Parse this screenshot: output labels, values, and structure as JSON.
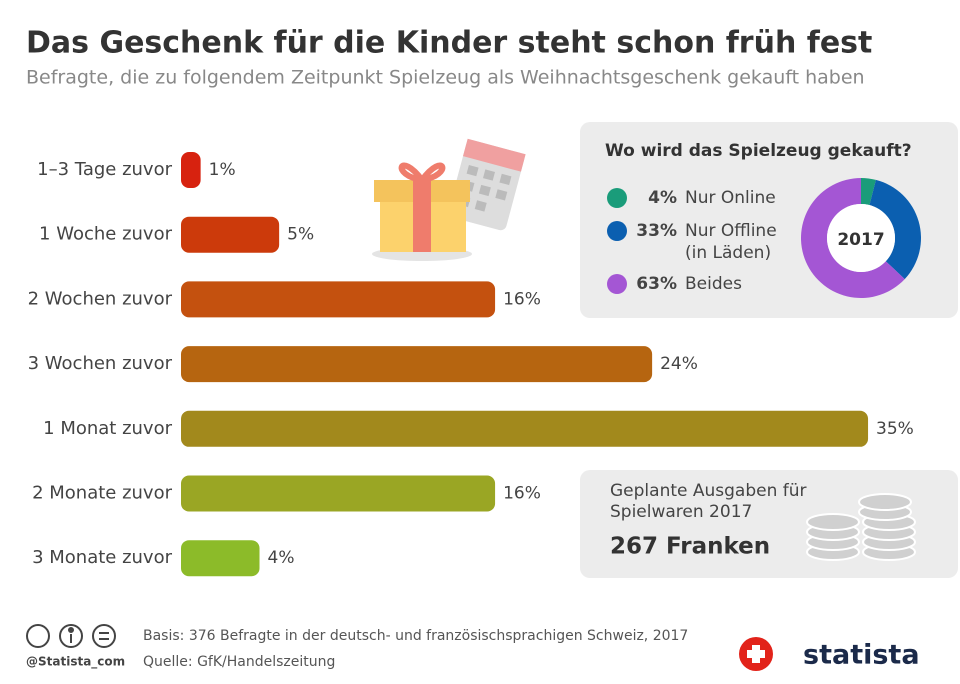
{
  "chart_data": [
    {
      "type": "bar",
      "orientation": "horizontal",
      "title": "Das Geschenk für die Kinder steht schon früh fest",
      "subtitle": "Befragte, die zu folgendem Zeitpunkt Spielzeug als Weihnachtsgeschenk gekauft haben",
      "categories": [
        "1–3 Tage zuvor",
        "1 Woche zuvor",
        "2 Wochen zuvor",
        "3 Wochen zuvor",
        "1 Monat zuvor",
        "2 Monate zuvor",
        "3 Monate zuvor"
      ],
      "values": [
        1,
        5,
        16,
        24,
        35,
        16,
        4
      ],
      "value_labels": [
        "1%",
        "5%",
        "16%",
        "24%",
        "35%",
        "16%",
        "4%"
      ],
      "colors": [
        "#d7220f",
        "#cc3a0b",
        "#c4510f",
        "#b66510",
        "#a2891c",
        "#9aa624",
        "#8cbb29"
      ]
    },
    {
      "type": "pie",
      "donut": true,
      "title": "Wo wird das Spielzeug gekauft?",
      "center_label": "2017",
      "categories": [
        "Nur Online",
        "Nur Offline (in Läden)",
        "Beides"
      ],
      "values": [
        4,
        33,
        63
      ],
      "value_labels": [
        "4%",
        "33%",
        "63%"
      ],
      "colors": [
        "#1a9c7a",
        "#0b5fb0",
        "#a456d4"
      ]
    }
  ],
  "info_box": {
    "label": "Geplante Ausgaben für Spielwaren 2017",
    "amount": "267 Franken"
  },
  "footer": {
    "basis": "Basis: 376 Befragte in der deutsch- und französischsprachigen Schweiz, 2017",
    "source": "Quelle: GfK/Handelszeitung",
    "handle": "@Statista_com",
    "brand": "statista"
  }
}
